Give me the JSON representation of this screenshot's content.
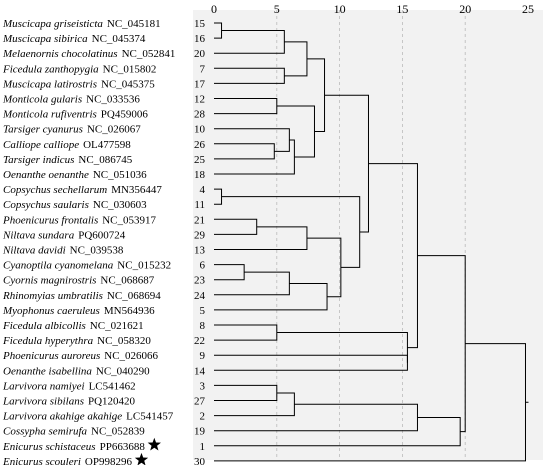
{
  "colors": {
    "panel": "#f2f2f2",
    "line": "#000000",
    "grid": "#bbbbbb"
  },
  "axis": {
    "min": 0,
    "max": 25,
    "ticks": [
      "0",
      "5",
      "10",
      "15",
      "20",
      "25"
    ]
  },
  "leaves": [
    {
      "name": "Muscicapa griseisticta",
      "acc": "NC_045181",
      "num": "15"
    },
    {
      "name": "Muscicapa sibirica",
      "acc": "NC_045374",
      "num": "16"
    },
    {
      "name": "Melaenornis chocolatinus",
      "acc": "NC_052841",
      "num": "20"
    },
    {
      "name": "Ficedula zanthopygia",
      "acc": "NC_015802",
      "num": "7"
    },
    {
      "name": "Muscicapa latirostris",
      "acc": "NC_045375",
      "num": "17"
    },
    {
      "name": "Monticola gularis",
      "acc": "NC_033536",
      "num": "12"
    },
    {
      "name": "Monticola rufiventris",
      "acc": "PQ459006",
      "num": "28"
    },
    {
      "name": "Tarsiger cyanurus",
      "acc": "NC_026067",
      "num": "10"
    },
    {
      "name": "Calliope calliope",
      "acc": "OL477598",
      "num": "26"
    },
    {
      "name": "Tarsiger indicus",
      "acc": "NC_086745",
      "num": "25"
    },
    {
      "name": "Oenanthe oenanthe",
      "acc": "NC_051036",
      "num": "18"
    },
    {
      "name": "Copsychus sechellarum",
      "acc": "MN356447",
      "num": "4"
    },
    {
      "name": "Copsychus saularis",
      "acc": "NC_030603",
      "num": "11"
    },
    {
      "name": "Phoenicurus frontalis",
      "acc": "NC_053917",
      "num": "21"
    },
    {
      "name": "Niltava sundara",
      "acc": "PQ600724",
      "num": "29"
    },
    {
      "name": "Niltava davidi",
      "acc": "NC_039538",
      "num": "13"
    },
    {
      "name": "Cyanoptila cyanomelana",
      "acc": "NC_015232",
      "num": "6"
    },
    {
      "name": "Cyornis magnirostris",
      "acc": "NC_068687",
      "num": "23"
    },
    {
      "name": "Rhinomyias umbratilis",
      "acc": "NC_068694",
      "num": "24"
    },
    {
      "name": "Myophonus caeruleus",
      "acc": "MN564936",
      "num": "5"
    },
    {
      "name": "Ficedula albicollis",
      "acc": "NC_021621",
      "num": "8"
    },
    {
      "name": "Ficedula hyperythra",
      "acc": "NC_058320",
      "num": "22"
    },
    {
      "name": "Phoenicurus auroreus",
      "acc": "NC_026066",
      "num": "9"
    },
    {
      "name": "Oenanthe isabellina",
      "acc": "NC_040290",
      "num": "14"
    },
    {
      "name": "Larvivora namiyei",
      "acc": "LC541462",
      "num": "3"
    },
    {
      "name": "Larvivora sibilans",
      "acc": "PQ120420",
      "num": "27"
    },
    {
      "name": "Larvivora akahige akahige",
      "acc": "LC541457",
      "num": "2"
    },
    {
      "name": "Cossypha semirufa",
      "acc": "NC_052839",
      "num": "19"
    },
    {
      "name": "Enicurus schistaceus",
      "acc": "PP663688",
      "num": "1",
      "star": true
    },
    {
      "name": "Enicurus scouleri",
      "acc": "OP998296",
      "num": "30",
      "star": true
    }
  ],
  "merges": [
    {
      "a": 0,
      "b": 1,
      "d": 0.6
    },
    {
      "a": 11,
      "b": 12,
      "d": 0.6
    },
    {
      "a": 16,
      "b": 17,
      "d": 2.4
    },
    {
      "a": 13,
      "b": 14,
      "d": 3.4
    },
    {
      "a": 8,
      "b": 9,
      "d": 4.8
    },
    {
      "a": 5,
      "b": 6,
      "d": 5.0
    },
    {
      "a": 20,
      "b": 21,
      "d": 5.0
    },
    {
      "a": 24,
      "b": 25,
      "d": 5.0
    },
    {
      "a": 0,
      "b": 2,
      "d": 5.6
    },
    {
      "a": 3,
      "b": 4,
      "d": 5.6
    },
    {
      "a": 7,
      "b": 8,
      "d": 6.0
    },
    {
      "a": 16,
      "b": 18,
      "d": 6.0
    },
    {
      "a": 24,
      "b": 26,
      "d": 6.4
    },
    {
      "a": 7,
      "b": 10,
      "d": 6.4
    },
    {
      "a": 0,
      "b": 3,
      "d": 7.4
    },
    {
      "a": 13,
      "b": 15,
      "d": 7.4
    },
    {
      "a": 5,
      "b": 7,
      "d": 8.0
    },
    {
      "a": 0,
      "b": 5,
      "d": 8.8
    },
    {
      "a": 16,
      "b": 19,
      "d": 9.0
    },
    {
      "a": 13,
      "b": 16,
      "d": 10.1
    },
    {
      "a": 11,
      "b": 13,
      "d": 11.6
    },
    {
      "a": 0,
      "b": 11,
      "d": 12.3
    },
    {
      "a": 22,
      "b": 23,
      "d": 15.4
    },
    {
      "a": 20,
      "b": 22,
      "d": 15.4
    },
    {
      "a": 0,
      "b": 20,
      "d": 16.2
    },
    {
      "a": 24,
      "b": 27,
      "d": 16.2
    },
    {
      "a": 24,
      "b": 28,
      "d": 19.6
    },
    {
      "a": 0,
      "b": 24,
      "d": 20.0
    },
    {
      "a": 0,
      "b": 29,
      "d": 24.8
    }
  ]
}
